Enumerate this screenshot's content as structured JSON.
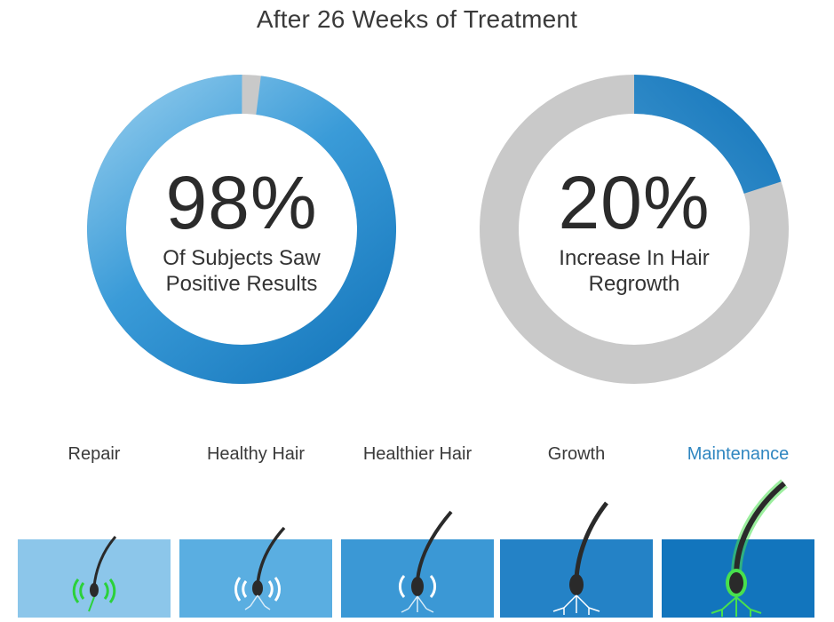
{
  "title": "After 26 Weeks of Treatment",
  "stat_left": {
    "value": "98%",
    "caption_line1": "Of Subjects Saw",
    "caption_line2": "Positive Results",
    "fill_fraction": 0.98,
    "colors": {
      "fill": "#1e83c6",
      "fill_light": "#6db7e2",
      "track": "#c9c9c9"
    }
  },
  "stat_right": {
    "value": "20%",
    "caption_line1": "Increase In Hair",
    "caption_line2": "Regrowth",
    "fill_fraction": 0.2,
    "colors": {
      "fill": "#1e83c6",
      "fill_light": "#6db7e2",
      "track": "#c9c9c9"
    }
  },
  "stages": [
    {
      "label": "Repair",
      "color": "#8cc6ea",
      "icon": "hair-follicle-repair-icon"
    },
    {
      "label": "Healthy Hair",
      "color": "#5aaee1",
      "icon": "hair-follicle-healthy-icon"
    },
    {
      "label": "Healthier Hair",
      "color": "#3b98d5",
      "icon": "hair-follicle-healthier-icon"
    },
    {
      "label": "Growth",
      "color": "#2482c6",
      "icon": "hair-follicle-growth-icon"
    },
    {
      "label": "Maintenance",
      "color": "#1275bd",
      "icon": "hair-follicle-maintenance-icon",
      "active": true
    }
  ]
}
